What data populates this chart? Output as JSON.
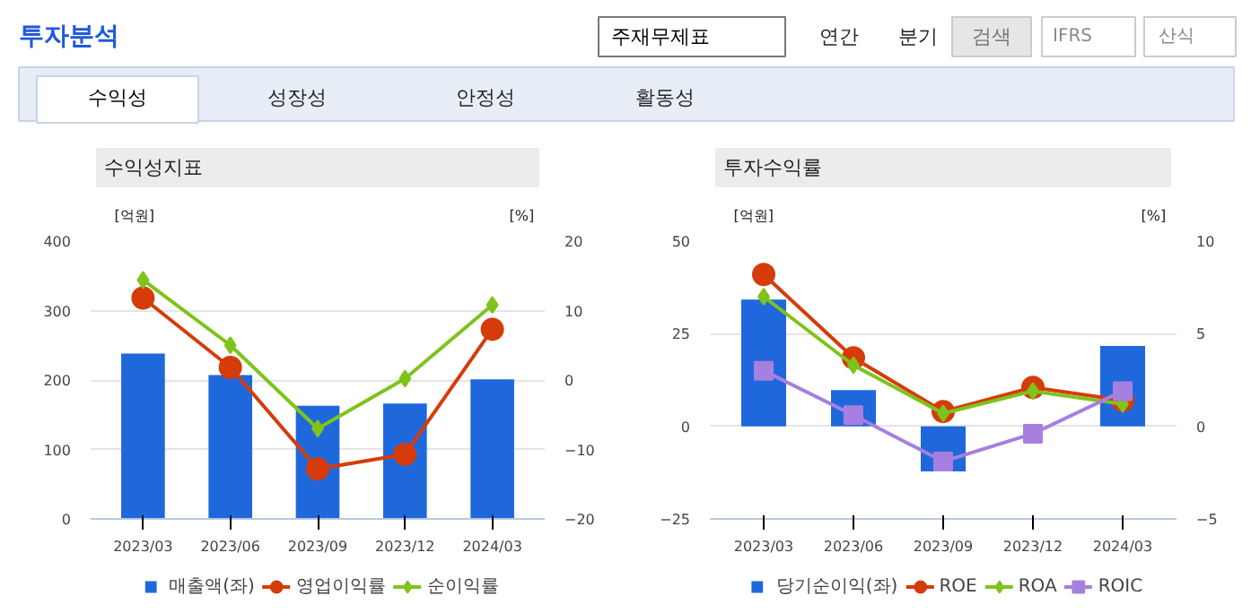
{
  "chart_data": [
    {
      "type": "bar",
      "title": "수익성지표",
      "ylabel": "[억원]",
      "y2label": "[%]",
      "annotations": [
        "투자분석",
        "주재무제표",
        "연간",
        "분기",
        "검색",
        "IFRS",
        "산식",
        "수익성",
        "성장성",
        "안정성",
        "활동성"
      ],
      "categories": [
        "2023/03",
        "2023/06",
        "2023/09",
        "2023/12",
        "2024/03"
      ],
      "series": [
        {
          "name": "매출액(좌)",
          "color": "#1f68dc",
          "values": [
            238,
            207,
            163,
            166,
            201
          ]
        },
        {
          "name": "영업이익률",
          "type": "line",
          "axis": "y2",
          "marker": "circle",
          "color": "#d63c0a",
          "values": [
            11.8,
            1.8,
            -12.8,
            -10.7,
            7.3
          ]
        },
        {
          "name": "순이익률",
          "type": "line",
          "axis": "y2",
          "marker": "diamond",
          "color": "#7fc31c",
          "values": [
            14.4,
            5.0,
            -7.0,
            0.2,
            10.8
          ]
        }
      ],
      "ylim": [
        0,
        400
      ],
      "yticks": [
        0,
        100,
        200,
        300,
        400
      ],
      "y2lim": [
        -20,
        20
      ],
      "y2ticks": [
        -20,
        -10,
        0,
        10,
        20
      ],
      "grid": "y",
      "legend": "bottom"
    },
    {
      "type": "bar",
      "title": "투자수익률",
      "ylabel": "[억원]",
      "y2label": "[%]",
      "categories": [
        "2023/03",
        "2023/06",
        "2023/09",
        "2023/12",
        "2024/03"
      ],
      "series": [
        {
          "name": "당기순이익(좌)",
          "color": "#1f68dc",
          "values": [
            34.2,
            9.8,
            -12.2,
            null,
            21.7
          ]
        },
        {
          "name": "ROE",
          "type": "line",
          "axis": "y2",
          "marker": "circle",
          "color": "#d63c0a",
          "values": [
            8.2,
            3.7,
            0.8,
            2.1,
            1.4
          ]
        },
        {
          "name": "ROA",
          "type": "line",
          "axis": "y2",
          "marker": "diamond",
          "color": "#7fc31c",
          "values": [
            7.0,
            3.3,
            0.7,
            1.9,
            1.2
          ]
        },
        {
          "name": "ROIC",
          "type": "line",
          "axis": "y2",
          "marker": "square",
          "color": "#a77fe0",
          "values": [
            3.0,
            0.6,
            -1.9,
            -0.4,
            1.9
          ]
        }
      ],
      "ylim": [
        -25,
        50
      ],
      "yticks": [
        -25,
        0,
        25,
        50
      ],
      "y2lim": [
        -5,
        10
      ],
      "y2ticks": [
        -5,
        0,
        5,
        10
      ],
      "grid": "y",
      "legend": "bottom"
    }
  ]
}
